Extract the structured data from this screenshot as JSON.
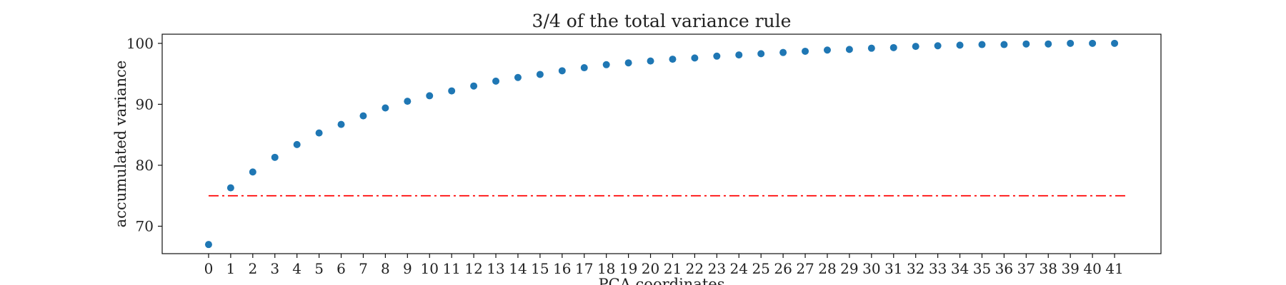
{
  "chart_data": {
    "type": "scatter",
    "title": "3/4 of the total variance rule",
    "xlabel": "PCA coordinates",
    "ylabel": "accumulated variance",
    "x": [
      0,
      1,
      2,
      3,
      4,
      5,
      6,
      7,
      8,
      9,
      10,
      11,
      12,
      13,
      14,
      15,
      16,
      17,
      18,
      19,
      20,
      21,
      22,
      23,
      24,
      25,
      26,
      27,
      28,
      29,
      30,
      31,
      32,
      33,
      34,
      35,
      36,
      37,
      38,
      39,
      40,
      41
    ],
    "x_tick_labels": [
      "0",
      "1",
      "2",
      "3",
      "4",
      "5",
      "6",
      "7",
      "8",
      "9",
      "10",
      "11",
      "12",
      "13",
      "14",
      "15",
      "16",
      "17",
      "18",
      "19",
      "20",
      "21",
      "22",
      "23",
      "24",
      "25",
      "26",
      "27",
      "28",
      "29",
      "30",
      "31",
      "32",
      "33",
      "34",
      "35",
      "36",
      "37",
      "38",
      "39",
      "40",
      "41"
    ],
    "xlim": [
      -2.1,
      43.1
    ],
    "y_ticks": [
      70,
      80,
      90,
      100
    ],
    "y_tick_labels": [
      "70",
      "80",
      "90",
      "100"
    ],
    "ylim": [
      65.5,
      101.5
    ],
    "series": [
      {
        "name": "accumulated variance",
        "color": "#1f77b4",
        "values": [
          67.0,
          76.3,
          78.9,
          81.3,
          83.4,
          85.3,
          86.7,
          88.1,
          89.4,
          90.5,
          91.4,
          92.2,
          93.0,
          93.8,
          94.4,
          94.9,
          95.5,
          96.0,
          96.5,
          96.8,
          97.1,
          97.4,
          97.6,
          97.9,
          98.1,
          98.3,
          98.5,
          98.7,
          98.9,
          99.0,
          99.2,
          99.3,
          99.5,
          99.6,
          99.7,
          99.8,
          99.8,
          99.9,
          99.9,
          100.0,
          100.0,
          100.0
        ]
      }
    ],
    "threshold": {
      "value": 75,
      "x_range": [
        0,
        41.5
      ],
      "color": "#ff0000",
      "style": "dashdot"
    },
    "grid": false,
    "legend": "none"
  }
}
